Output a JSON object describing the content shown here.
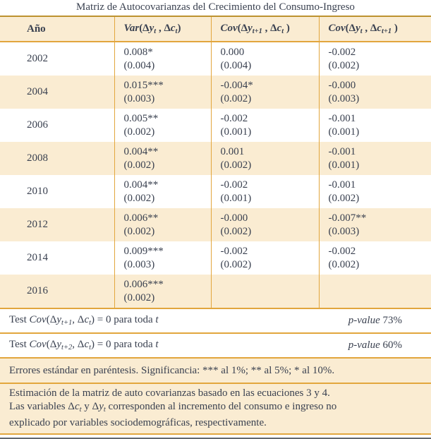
{
  "title": "Matriz de Autocovarianzas del Crecimiento del Consumo-Ingreso",
  "colors": {
    "stripe_cream": "#faecd2",
    "rule_gold": "#e2a63d",
    "rule_top_dark_gold": "#bd922f",
    "rule_bottom_gray": "#63676d",
    "text": "#3a4150"
  },
  "table": {
    "headers": {
      "year": "Año",
      "var_parts": [
        {
          "t": "Var",
          "s": "b i"
        },
        {
          "t": "(Δ",
          "s": "b"
        },
        {
          "t": "y",
          "s": "b i"
        },
        {
          "t": "t",
          "s": "b i sub"
        },
        {
          "t": " , Δ",
          "s": "b"
        },
        {
          "t": "c",
          "s": "b i"
        },
        {
          "t": "t",
          "s": "b i sub"
        },
        {
          "t": ")",
          "s": "b"
        }
      ],
      "cov1_parts": [
        {
          "t": "Cov",
          "s": "b i"
        },
        {
          "t": "(Δ",
          "s": "b"
        },
        {
          "t": "y",
          "s": "b i"
        },
        {
          "t": "t+1",
          "s": "b i sub"
        },
        {
          "t": " , Δ",
          "s": "b"
        },
        {
          "t": "c",
          "s": "b i"
        },
        {
          "t": "t",
          "s": "b i sub"
        },
        {
          "t": " )",
          "s": "b"
        }
      ],
      "cov2_parts": [
        {
          "t": "Cov",
          "s": "b i"
        },
        {
          "t": "(Δ",
          "s": "b"
        },
        {
          "t": "y",
          "s": "b i"
        },
        {
          "t": "t",
          "s": "b i sub"
        },
        {
          "t": " , Δ",
          "s": "b"
        },
        {
          "t": "c",
          "s": "b i"
        },
        {
          "t": "t+1",
          "s": "b i sub"
        },
        {
          "t": " )",
          "s": "b"
        }
      ]
    },
    "rows": [
      {
        "year": "2002",
        "cells": [
          {
            "v": "0.008*",
            "se": "(0.004)"
          },
          {
            "v": "0.000",
            "se": "(0.004)"
          },
          {
            "v": "-0.002",
            "se": "(0.002)"
          }
        ]
      },
      {
        "year": "2004",
        "cells": [
          {
            "v": "0.015***",
            "se": "(0.003)"
          },
          {
            "v": "-0.004*",
            "se": "(0.002)"
          },
          {
            "v": "-0.000",
            "se": "(0.003)"
          }
        ]
      },
      {
        "year": "2006",
        "cells": [
          {
            "v": "0.005**",
            "se": "(0.002)"
          },
          {
            "v": "-0.002",
            "se": "(0.001)"
          },
          {
            "v": "-0.001",
            "se": "(0.001)"
          }
        ]
      },
      {
        "year": "2008",
        "cells": [
          {
            "v": "0.004**",
            "se": "(0.002)"
          },
          {
            "v": "0.001",
            "se": "(0.002)"
          },
          {
            "v": "-0.001",
            "se": "(0.001)"
          }
        ]
      },
      {
        "year": "2010",
        "cells": [
          {
            "v": "0.004**",
            "se": "(0.002)"
          },
          {
            "v": "-0.002",
            "se": "(0.001)"
          },
          {
            "v": "-0.001",
            "se": "(0.002)"
          }
        ]
      },
      {
        "year": "2012",
        "cells": [
          {
            "v": "0.006**",
            "se": "(0.002)"
          },
          {
            "v": "-0.000",
            "se": "(0.002)"
          },
          {
            "v": "-0.007**",
            "se": "(0.003)"
          }
        ]
      },
      {
        "year": "2014",
        "cells": [
          {
            "v": "0.009***",
            "se": "(0.003)"
          },
          {
            "v": "-0.002",
            "se": "(0.002)"
          },
          {
            "v": "-0.002",
            "se": "(0.002)"
          }
        ]
      },
      {
        "year": "2016",
        "cells": [
          {
            "v": "0.006***",
            "se": "(0.002)"
          },
          {
            "v": "",
            "se": ""
          },
          {
            "v": "",
            "se": ""
          }
        ]
      }
    ]
  },
  "tests": [
    {
      "label_parts": [
        {
          "t": "Test ",
          "s": ""
        },
        {
          "t": "Cov",
          "s": "i"
        },
        {
          "t": "(Δ",
          "s": ""
        },
        {
          "t": "y",
          "s": "i"
        },
        {
          "t": "t+1",
          "s": "i sub"
        },
        {
          "t": ", Δ",
          "s": ""
        },
        {
          "t": "c",
          "s": "i"
        },
        {
          "t": "t",
          "s": "i sub"
        },
        {
          "t": ") = 0 para toda ",
          "s": ""
        },
        {
          "t": "t",
          "s": "i"
        }
      ],
      "pvalue_parts": [
        {
          "t": "p-value",
          "s": "i"
        },
        {
          "t": " 73%",
          "s": ""
        }
      ]
    },
    {
      "label_parts": [
        {
          "t": "Test ",
          "s": ""
        },
        {
          "t": "Cov",
          "s": "i"
        },
        {
          "t": "(Δ",
          "s": ""
        },
        {
          "t": "y",
          "s": "i"
        },
        {
          "t": "t+2",
          "s": "i sub"
        },
        {
          "t": ", Δ",
          "s": ""
        },
        {
          "t": "c",
          "s": "i"
        },
        {
          "t": "t",
          "s": "i sub"
        },
        {
          "t": ") = 0 para toda ",
          "s": ""
        },
        {
          "t": "t",
          "s": "i"
        }
      ],
      "pvalue_parts": [
        {
          "t": "p-value",
          "s": "i"
        },
        {
          "t": " 60%",
          "s": ""
        }
      ]
    }
  ],
  "notes": {
    "significance": "Errores estándar en paréntesis. Significancia: *** al 1%; ** al 5%; * al 10%.",
    "estimation_line1": "Estimación de la matriz de auto covarianzas basado en las ecuaciones 3 y 4.",
    "estimation_line2_parts": [
      {
        "t": "Las variables Δ",
        "s": ""
      },
      {
        "t": "c",
        "s": "i"
      },
      {
        "t": "t",
        "s": "i sub"
      },
      {
        "t": " y Δ",
        "s": ""
      },
      {
        "t": "y",
        "s": "i"
      },
      {
        "t": "t",
        "s": "i sub"
      },
      {
        "t": " corresponden al incremento del consumo e ingreso no",
        "s": ""
      }
    ],
    "estimation_line3": "explicado por variables sociodemográficas, respectivamente."
  }
}
